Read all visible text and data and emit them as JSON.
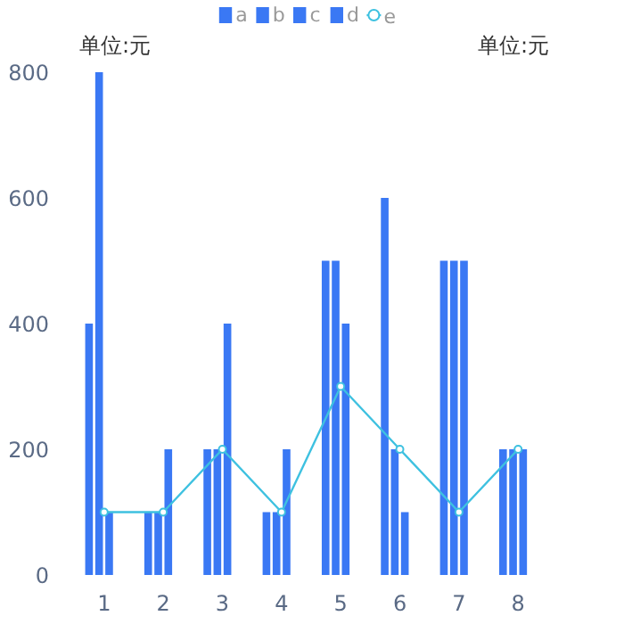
{
  "chart_data": {
    "type": "bar",
    "ylabel": "单位:元",
    "y2label": "单位:元",
    "categories": [
      "1",
      "2",
      "3",
      "4",
      "5",
      "6",
      "7",
      "8"
    ],
    "series": [
      {
        "name": "a",
        "color": "#3a78f4",
        "values": [
          400,
          100,
          200,
          100,
          500,
          600,
          500,
          200
        ]
      },
      {
        "name": "b",
        "color": "#3a78f4",
        "values": [
          800,
          100,
          200,
          100,
          500,
          200,
          500,
          200
        ]
      },
      {
        "name": "c",
        "color": "#3a78f4",
        "values": [
          100,
          200,
          400,
          200,
          400,
          100,
          500,
          200
        ]
      },
      {
        "name": "d",
        "color": "#3a78f4",
        "values": [
          null,
          null,
          null,
          null,
          null,
          null,
          null,
          null
        ]
      },
      {
        "name": "e",
        "type": "line",
        "color": "#3ec1e0",
        "values": [
          100,
          100,
          200,
          100,
          300,
          200,
          100,
          200
        ]
      }
    ],
    "ylim": [
      0,
      800
    ],
    "yticks": [
      0,
      200,
      400,
      600,
      800
    ],
    "legend": "top",
    "marker": "circle",
    "grid": false
  }
}
